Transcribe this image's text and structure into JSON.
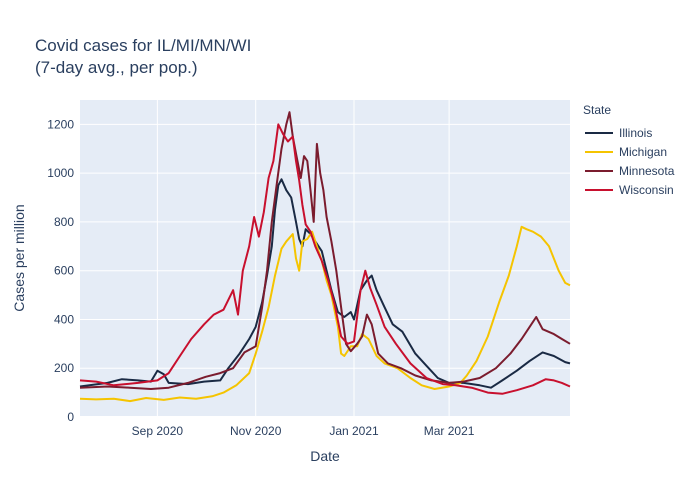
{
  "chart_data": {
    "type": "line",
    "title_line1": "Covid cases for IL/MI/MN/WI",
    "title_line2": "(7-day avg., per pop.)",
    "xlabel": "Date",
    "ylabel": "Cases per million",
    "ylim": [
      0,
      1300
    ],
    "yticks": [
      0,
      200,
      400,
      600,
      800,
      1000,
      1200
    ],
    "xrange": [
      "2020-07-15",
      "2021-05-15"
    ],
    "xticks": [
      {
        "date": "2020-09-01",
        "label": "Sep 2020"
      },
      {
        "date": "2020-11-01",
        "label": "Nov 2020"
      },
      {
        "date": "2021-01-01",
        "label": "Jan 2021"
      },
      {
        "date": "2021-03-01",
        "label": "Mar 2021"
      }
    ],
    "legend_title": "State",
    "series": [
      {
        "name": "Illinois",
        "color": "#1a2a44",
        "points": [
          [
            "2020-07-15",
            125
          ],
          [
            "2020-08-01",
            140
          ],
          [
            "2020-08-10",
            155
          ],
          [
            "2020-08-20",
            150
          ],
          [
            "2020-08-28",
            145
          ],
          [
            "2020-09-01",
            190
          ],
          [
            "2020-09-05",
            175
          ],
          [
            "2020-09-08",
            140
          ],
          [
            "2020-09-20",
            135
          ],
          [
            "2020-09-30",
            145
          ],
          [
            "2020-10-10",
            150
          ],
          [
            "2020-10-15",
            200
          ],
          [
            "2020-10-22",
            260
          ],
          [
            "2020-10-28",
            320
          ],
          [
            "2020-11-01",
            370
          ],
          [
            "2020-11-05",
            470
          ],
          [
            "2020-11-08",
            580
          ],
          [
            "2020-11-11",
            700
          ],
          [
            "2020-11-13",
            850
          ],
          [
            "2020-11-15",
            950
          ],
          [
            "2020-11-17",
            975
          ],
          [
            "2020-11-20",
            930
          ],
          [
            "2020-11-23",
            900
          ],
          [
            "2020-11-26",
            800
          ],
          [
            "2020-11-28",
            730
          ],
          [
            "2020-11-30",
            700
          ],
          [
            "2020-12-02",
            770
          ],
          [
            "2020-12-05",
            750
          ],
          [
            "2020-12-08",
            720
          ],
          [
            "2020-12-12",
            680
          ],
          [
            "2020-12-15",
            600
          ],
          [
            "2020-12-18",
            520
          ],
          [
            "2020-12-22",
            430
          ],
          [
            "2020-12-26",
            410
          ],
          [
            "2020-12-30",
            430
          ],
          [
            "2021-01-01",
            400
          ],
          [
            "2021-01-05",
            520
          ],
          [
            "2021-01-09",
            560
          ],
          [
            "2021-01-12",
            580
          ],
          [
            "2021-01-15",
            520
          ],
          [
            "2021-01-20",
            450
          ],
          [
            "2021-01-25",
            380
          ],
          [
            "2021-01-31",
            350
          ],
          [
            "2021-02-08",
            260
          ],
          [
            "2021-02-15",
            210
          ],
          [
            "2021-02-22",
            160
          ],
          [
            "2021-03-01",
            140
          ],
          [
            "2021-03-10",
            140
          ],
          [
            "2021-03-20",
            130
          ],
          [
            "2021-03-27",
            120
          ],
          [
            "2021-04-03",
            150
          ],
          [
            "2021-04-12",
            190
          ],
          [
            "2021-04-20",
            230
          ],
          [
            "2021-04-28",
            265
          ],
          [
            "2021-05-05",
            250
          ],
          [
            "2021-05-12",
            225
          ],
          [
            "2021-05-15",
            220
          ]
        ]
      },
      {
        "name": "Michigan",
        "color": "#f5c400",
        "points": [
          [
            "2020-07-15",
            75
          ],
          [
            "2020-07-25",
            72
          ],
          [
            "2020-08-05",
            75
          ],
          [
            "2020-08-15",
            65
          ],
          [
            "2020-08-25",
            78
          ],
          [
            "2020-09-05",
            70
          ],
          [
            "2020-09-15",
            80
          ],
          [
            "2020-09-25",
            75
          ],
          [
            "2020-10-05",
            85
          ],
          [
            "2020-10-12",
            100
          ],
          [
            "2020-10-20",
            130
          ],
          [
            "2020-10-28",
            180
          ],
          [
            "2020-11-01",
            260
          ],
          [
            "2020-11-05",
            350
          ],
          [
            "2020-11-09",
            450
          ],
          [
            "2020-11-13",
            580
          ],
          [
            "2020-11-17",
            690
          ],
          [
            "2020-11-20",
            720
          ],
          [
            "2020-11-24",
            750
          ],
          [
            "2020-11-26",
            650
          ],
          [
            "2020-11-28",
            600
          ],
          [
            "2020-11-30",
            720
          ],
          [
            "2020-12-03",
            730
          ],
          [
            "2020-12-06",
            760
          ],
          [
            "2020-12-09",
            700
          ],
          [
            "2020-12-12",
            640
          ],
          [
            "2020-12-15",
            560
          ],
          [
            "2020-12-18",
            500
          ],
          [
            "2020-12-22",
            370
          ],
          [
            "2020-12-24",
            260
          ],
          [
            "2020-12-26",
            250
          ],
          [
            "2020-12-30",
            290
          ],
          [
            "2021-01-03",
            290
          ],
          [
            "2021-01-06",
            340
          ],
          [
            "2021-01-10",
            320
          ],
          [
            "2021-01-15",
            250
          ],
          [
            "2021-01-20",
            220
          ],
          [
            "2021-01-28",
            200
          ],
          [
            "2021-02-05",
            160
          ],
          [
            "2021-02-12",
            130
          ],
          [
            "2021-02-20",
            115
          ],
          [
            "2021-03-01",
            125
          ],
          [
            "2021-03-08",
            140
          ],
          [
            "2021-03-12",
            170
          ],
          [
            "2021-03-18",
            230
          ],
          [
            "2021-03-25",
            330
          ],
          [
            "2021-04-01",
            470
          ],
          [
            "2021-04-07",
            580
          ],
          [
            "2021-04-12",
            700
          ],
          [
            "2021-04-15",
            780
          ],
          [
            "2021-04-18",
            770
          ],
          [
            "2021-04-22",
            760
          ],
          [
            "2021-04-27",
            740
          ],
          [
            "2021-05-02",
            700
          ],
          [
            "2021-05-08",
            600
          ],
          [
            "2021-05-12",
            550
          ],
          [
            "2021-05-15",
            540
          ]
        ]
      },
      {
        "name": "Minnesota",
        "color": "#7b1c2e",
        "points": [
          [
            "2020-07-15",
            120
          ],
          [
            "2020-08-01",
            125
          ],
          [
            "2020-08-15",
            120
          ],
          [
            "2020-08-28",
            115
          ],
          [
            "2020-09-08",
            120
          ],
          [
            "2020-09-20",
            140
          ],
          [
            "2020-10-01",
            165
          ],
          [
            "2020-10-10",
            180
          ],
          [
            "2020-10-18",
            200
          ],
          [
            "2020-10-25",
            265
          ],
          [
            "2020-11-01",
            290
          ],
          [
            "2020-11-05",
            450
          ],
          [
            "2020-11-08",
            600
          ],
          [
            "2020-11-11",
            800
          ],
          [
            "2020-11-14",
            950
          ],
          [
            "2020-11-17",
            1100
          ],
          [
            "2020-11-20",
            1200
          ],
          [
            "2020-11-22",
            1250
          ],
          [
            "2020-11-24",
            1150
          ],
          [
            "2020-11-26",
            1080
          ],
          [
            "2020-11-29",
            980
          ],
          [
            "2020-12-01",
            1070
          ],
          [
            "2020-12-03",
            1050
          ],
          [
            "2020-12-05",
            930
          ],
          [
            "2020-12-07",
            800
          ],
          [
            "2020-12-09",
            1120
          ],
          [
            "2020-12-11",
            1000
          ],
          [
            "2020-12-13",
            930
          ],
          [
            "2020-12-15",
            820
          ],
          [
            "2020-12-18",
            720
          ],
          [
            "2020-12-21",
            600
          ],
          [
            "2020-12-24",
            450
          ],
          [
            "2020-12-27",
            300
          ],
          [
            "2020-12-30",
            270
          ],
          [
            "2021-01-03",
            300
          ],
          [
            "2021-01-06",
            330
          ],
          [
            "2021-01-09",
            420
          ],
          [
            "2021-01-12",
            380
          ],
          [
            "2021-01-16",
            260
          ],
          [
            "2021-01-22",
            220
          ],
          [
            "2021-01-30",
            200
          ],
          [
            "2021-02-08",
            170
          ],
          [
            "2021-02-18",
            150
          ],
          [
            "2021-03-01",
            140
          ],
          [
            "2021-03-10",
            145
          ],
          [
            "2021-03-20",
            160
          ],
          [
            "2021-03-30",
            200
          ],
          [
            "2021-04-08",
            260
          ],
          [
            "2021-04-15",
            320
          ],
          [
            "2021-04-20",
            370
          ],
          [
            "2021-04-24",
            410
          ],
          [
            "2021-04-28",
            360
          ],
          [
            "2021-05-05",
            340
          ],
          [
            "2021-05-10",
            320
          ],
          [
            "2021-05-15",
            300
          ]
        ]
      },
      {
        "name": "Wisconsin",
        "color": "#c8102e",
        "points": [
          [
            "2020-07-15",
            150
          ],
          [
            "2020-07-25",
            145
          ],
          [
            "2020-08-05",
            130
          ],
          [
            "2020-08-20",
            140
          ],
          [
            "2020-09-01",
            150
          ],
          [
            "2020-09-08",
            180
          ],
          [
            "2020-09-15",
            250
          ],
          [
            "2020-09-22",
            320
          ],
          [
            "2020-09-30",
            380
          ],
          [
            "2020-10-06",
            420
          ],
          [
            "2020-10-12",
            440
          ],
          [
            "2020-10-18",
            520
          ],
          [
            "2020-10-21",
            420
          ],
          [
            "2020-10-24",
            600
          ],
          [
            "2020-10-28",
            700
          ],
          [
            "2020-10-31",
            820
          ],
          [
            "2020-11-03",
            740
          ],
          [
            "2020-11-06",
            840
          ],
          [
            "2020-11-09",
            980
          ],
          [
            "2020-11-12",
            1050
          ],
          [
            "2020-11-15",
            1200
          ],
          [
            "2020-11-18",
            1160
          ],
          [
            "2020-11-21",
            1130
          ],
          [
            "2020-11-24",
            1150
          ],
          [
            "2020-11-26",
            1050
          ],
          [
            "2020-11-28",
            970
          ],
          [
            "2020-11-30",
            870
          ],
          [
            "2020-12-02",
            790
          ],
          [
            "2020-12-05",
            760
          ],
          [
            "2020-12-08",
            700
          ],
          [
            "2020-12-12",
            640
          ],
          [
            "2020-12-16",
            560
          ],
          [
            "2020-12-20",
            460
          ],
          [
            "2020-12-24",
            330
          ],
          [
            "2020-12-28",
            300
          ],
          [
            "2021-01-01",
            310
          ],
          [
            "2021-01-05",
            520
          ],
          [
            "2021-01-08",
            600
          ],
          [
            "2021-01-11",
            530
          ],
          [
            "2021-01-15",
            460
          ],
          [
            "2021-01-20",
            370
          ],
          [
            "2021-01-27",
            300
          ],
          [
            "2021-02-05",
            220
          ],
          [
            "2021-02-15",
            160
          ],
          [
            "2021-02-25",
            135
          ],
          [
            "2021-03-05",
            130
          ],
          [
            "2021-03-15",
            120
          ],
          [
            "2021-03-25",
            100
          ],
          [
            "2021-04-03",
            95
          ],
          [
            "2021-04-12",
            110
          ],
          [
            "2021-04-22",
            130
          ],
          [
            "2021-04-30",
            155
          ],
          [
            "2021-05-05",
            150
          ],
          [
            "2021-05-10",
            140
          ],
          [
            "2021-05-15",
            125
          ]
        ]
      }
    ]
  }
}
